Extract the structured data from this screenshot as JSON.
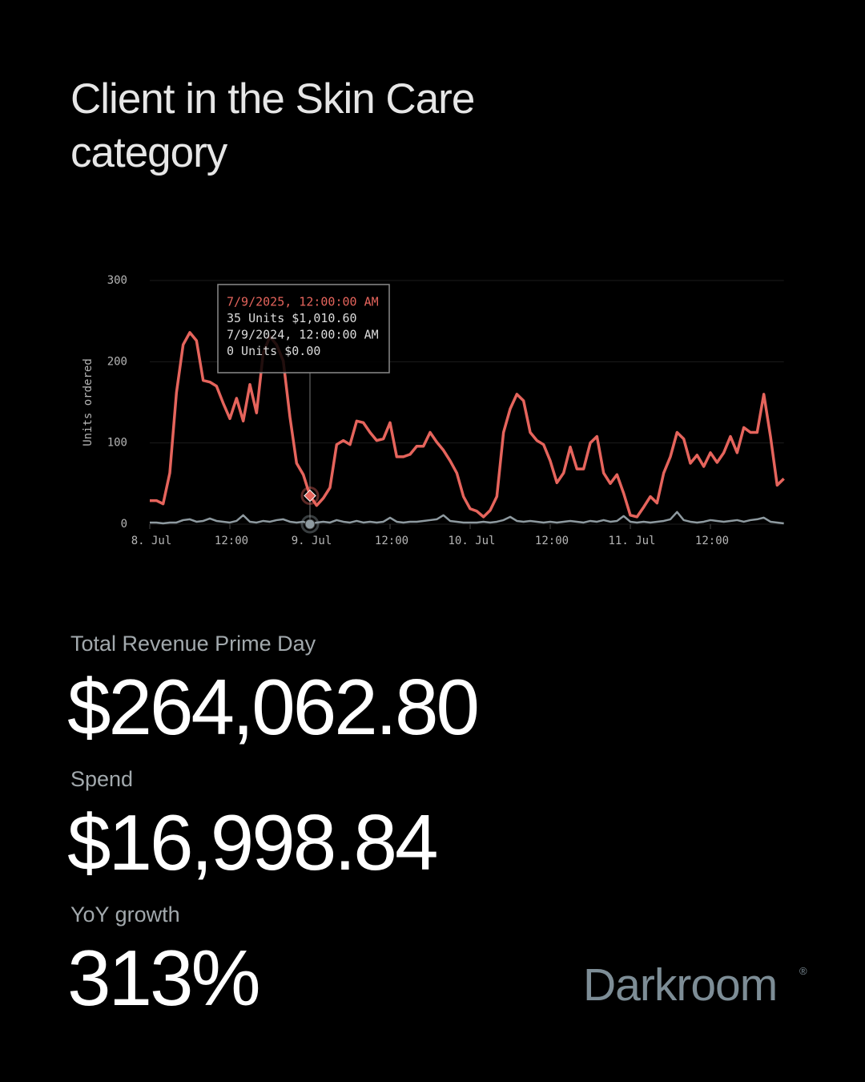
{
  "header": {
    "title": "Client in the Skin Care category"
  },
  "chart_data": {
    "type": "line",
    "y_label": "Units ordered",
    "categories": [
      "8. Jul",
      null,
      null,
      null,
      null,
      null,
      null,
      null,
      null,
      null,
      null,
      null,
      "12:00",
      null,
      null,
      null,
      null,
      null,
      null,
      null,
      null,
      null,
      null,
      null,
      "9. Jul",
      null,
      null,
      null,
      null,
      null,
      null,
      null,
      null,
      null,
      null,
      null,
      "12:00",
      null,
      null,
      null,
      null,
      null,
      null,
      null,
      null,
      null,
      null,
      null,
      "10. Jul",
      null,
      null,
      null,
      null,
      null,
      null,
      null,
      null,
      null,
      null,
      null,
      "12:00",
      null,
      null,
      null,
      null,
      null,
      null,
      null,
      null,
      null,
      null,
      null,
      "11. Jul",
      null,
      null,
      null,
      null,
      null,
      null,
      null,
      null,
      null,
      null,
      null,
      "12:00",
      null,
      null,
      null,
      null,
      null,
      null,
      null,
      null,
      null,
      null,
      null
    ],
    "series": [
      {
        "name": "2025",
        "color": "#e5645c",
        "values": [
          29,
          29,
          25,
          63,
          162,
          221,
          236,
          226,
          177,
          175,
          170,
          149,
          130,
          155,
          127,
          172,
          137,
          211,
          231,
          221,
          201,
          132,
          75,
          61,
          35,
          23,
          32,
          45,
          98,
          103,
          98,
          127,
          125,
          113,
          103,
          105,
          125,
          83,
          83,
          86,
          96,
          96,
          113,
          101,
          91,
          78,
          63,
          34,
          19,
          16,
          9,
          17,
          34,
          113,
          142,
          160,
          152,
          113,
          103,
          98,
          78,
          51,
          63,
          95,
          68,
          68,
          100,
          108,
          63,
          50,
          61,
          38,
          11,
          9,
          21,
          34,
          26,
          63,
          83,
          113,
          105,
          75,
          85,
          71,
          88,
          76,
          88,
          108,
          88,
          119,
          113,
          113,
          160,
          108,
          48,
          56
        ]
      },
      {
        "name": "2024",
        "color": "#8e9aa0",
        "values": [
          2,
          2,
          1,
          2,
          2,
          5,
          6,
          3,
          4,
          7,
          4,
          3,
          2,
          4,
          11,
          3,
          2,
          4,
          3,
          5,
          6,
          3,
          2,
          3,
          0,
          2,
          3,
          2,
          5,
          3,
          2,
          4,
          2,
          3,
          2,
          3,
          8,
          3,
          2,
          3,
          3,
          4,
          5,
          6,
          11,
          4,
          3,
          2,
          2,
          2,
          3,
          2,
          3,
          5,
          9,
          4,
          3,
          4,
          3,
          2,
          3,
          2,
          3,
          4,
          3,
          2,
          4,
          3,
          5,
          3,
          4,
          10,
          3,
          2,
          3,
          2,
          3,
          4,
          6,
          15,
          5,
          3,
          2,
          3,
          5,
          4,
          3,
          4,
          5,
          3,
          5,
          6,
          8,
          3,
          2,
          1
        ]
      }
    ],
    "ylim": [
      0,
      300
    ],
    "yticks": [
      0,
      100,
      200,
      300
    ],
    "grid": true,
    "hover_index": 24,
    "tooltip": [
      "7/9/2025, 12:00:00 AM",
      "35 Units $1,010.60",
      "7/9/2024, 12:00:00 AM",
      "0 Units $0.00"
    ]
  },
  "stats": [
    {
      "label": "Total Revenue Prime Day",
      "value": "$264,062.80"
    },
    {
      "label": "Spend",
      "value": "$16,998.84"
    },
    {
      "label": "YoY growth",
      "value": "313%"
    }
  ],
  "brand": {
    "name": "Darkroom",
    "mark": "®"
  }
}
